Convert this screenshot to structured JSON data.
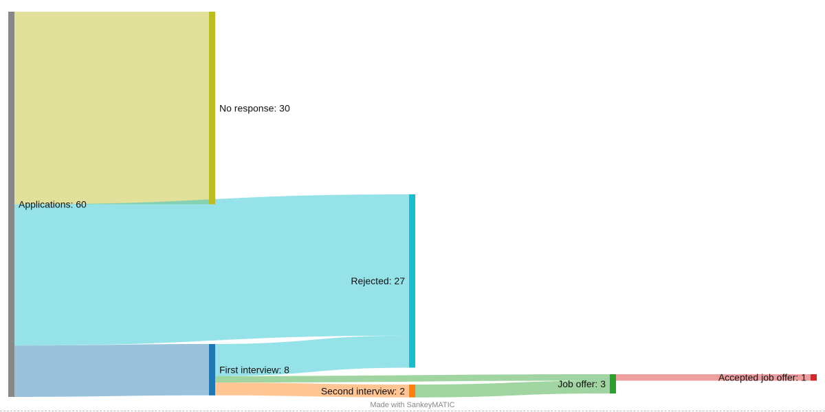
{
  "nodes": [
    {
      "id": "applications",
      "label": "Applications: 60",
      "color": "#888888"
    },
    {
      "id": "no-response",
      "label": "No response: 30",
      "color": "#bcbd22"
    },
    {
      "id": "rejected",
      "label": "Rejected: 27",
      "color": "#17becf"
    },
    {
      "id": "first-interview",
      "label": "First interview: 8",
      "color": "#1f77b4"
    },
    {
      "id": "second-interview",
      "label": "Second interview: 2",
      "color": "#ff7f0e"
    },
    {
      "id": "job-offer",
      "label": "Job offer: 3",
      "color": "#2ca02c"
    },
    {
      "id": "accepted-job-offer",
      "label": "Accepted job offer: 1",
      "color": "#d62728"
    }
  ],
  "flows": [
    {
      "source": "applications",
      "target": "no-response",
      "value": 30
    },
    {
      "source": "applications",
      "target": "rejected",
      "value": 22
    },
    {
      "source": "applications",
      "target": "first-interview",
      "value": 8
    },
    {
      "source": "first-interview",
      "target": "rejected",
      "value": 5
    },
    {
      "source": "first-interview",
      "target": "job-offer",
      "value": 1
    },
    {
      "source": "first-interview",
      "target": "second-interview",
      "value": 2
    },
    {
      "source": "second-interview",
      "target": "job-offer",
      "value": 2
    },
    {
      "source": "job-offer",
      "target": "accepted-job-offer",
      "value": 1
    }
  ],
  "footer": {
    "credit": "Made with SankeyMATIC"
  }
}
